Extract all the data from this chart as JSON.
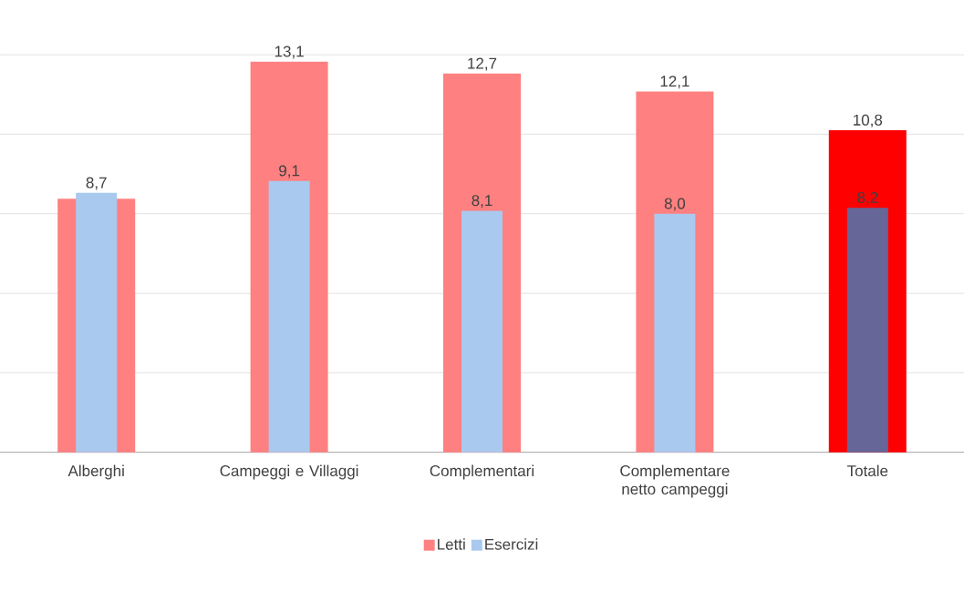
{
  "chart_data": {
    "type": "bar",
    "categories": [
      "Alberghi",
      "Campeggi e Villaggi",
      "Complementari",
      "Complementare netto campeggi",
      "Totale"
    ],
    "series": [
      {
        "name": "Letti",
        "color": "#ff8080",
        "colors": [
          "#ff8080",
          "#ff8080",
          "#ff8080",
          "#ff8080",
          "#ff0000"
        ],
        "values": [
          8.5,
          13.1,
          12.7,
          12.1,
          10.8
        ],
        "value_labels": [
          null,
          "13,1",
          "12,7",
          "12,1",
          "10,8"
        ]
      },
      {
        "name": "Esercizi",
        "color": "#a9c9ef",
        "colors": [
          "#a9c9ef",
          "#a9c9ef",
          "#a9c9ef",
          "#a9c9ef",
          "#666699"
        ],
        "values": [
          8.7,
          9.1,
          8.1,
          8.0,
          8.2
        ],
        "value_labels": [
          "8,7",
          "9,1",
          "8,1",
          "8,0",
          "8,2"
        ]
      }
    ],
    "ylim": [
      0,
      16
    ],
    "yticks": [
      {
        "value": 0,
        "label": null
      },
      {
        "value": 2.67,
        "label": null
      },
      {
        "value": 5.33,
        "label": null
      },
      {
        "value": 8,
        "label": null
      },
      {
        "value": 10.67,
        "label": null
      },
      {
        "value": 13.33,
        "label": null
      },
      {
        "value": 16,
        "label": null
      }
    ],
    "grid": "y",
    "legend": "bottom",
    "tick_labels": "x"
  }
}
